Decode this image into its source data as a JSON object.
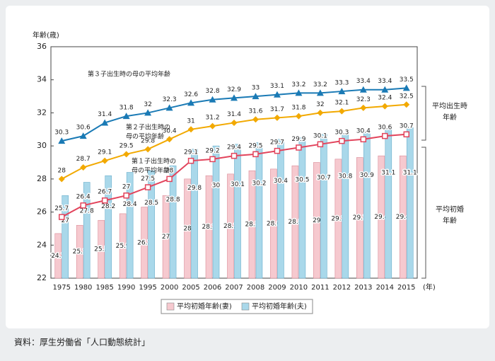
{
  "chart_data": {
    "type": "combo",
    "y_label": "年齢(歳)",
    "x_unit": "(年)",
    "categories": [
      "1975",
      "1980",
      "1985",
      "1990",
      "1995",
      "2000",
      "2005",
      "2006",
      "2007",
      "2008",
      "2009",
      "2010",
      "2011",
      "2012",
      "2013",
      "2014",
      "2015"
    ],
    "ylim": [
      22,
      36
    ],
    "yticks": [
      22,
      24,
      26,
      28,
      30,
      32,
      34,
      36
    ],
    "grid": false,
    "series": [
      {
        "name": "平均初婚年齢(妻)",
        "kind": "bar",
        "color": "#f6c9cf",
        "values": [
          24.7,
          25.2,
          25.5,
          25.9,
          26.3,
          27.0,
          28.0,
          28.2,
          28.3,
          28.5,
          28.6,
          28.8,
          29.0,
          29.2,
          29.3,
          29.4,
          29.4
        ]
      },
      {
        "name": "平均初婚年齢(夫)",
        "kind": "bar",
        "color": "#a9d8ea",
        "values": [
          27.0,
          27.8,
          28.2,
          28.4,
          28.5,
          28.8,
          29.8,
          30.0,
          30.1,
          30.2,
          30.4,
          30.5,
          30.7,
          30.8,
          30.9,
          31.1,
          31.1
        ]
      },
      {
        "label_lines": [
          "第１子出生時の",
          "母の平均年齢"
        ],
        "kind": "line",
        "marker": "square",
        "color": "#e2445c",
        "values": [
          25.7,
          26.4,
          26.7,
          27.0,
          27.5,
          28.0,
          29.1,
          29.2,
          29.4,
          29.5,
          29.7,
          29.9,
          30.1,
          30.3,
          30.4,
          30.6,
          30.7
        ]
      },
      {
        "label_lines": [
          "第２子出生時の",
          "母の平均年齢"
        ],
        "kind": "line",
        "marker": "diamond",
        "color": "#f2a900",
        "values": [
          28.0,
          28.7,
          29.1,
          29.5,
          29.8,
          30.4,
          31.0,
          31.2,
          31.4,
          31.6,
          31.7,
          31.8,
          32.0,
          32.1,
          32.3,
          32.4,
          32.5
        ]
      },
      {
        "label_lines": [
          "第３子出生時の母の平均年齢"
        ],
        "kind": "line",
        "marker": "triangle",
        "color": "#1a7ab5",
        "values": [
          30.3,
          30.6,
          31.4,
          31.8,
          32.0,
          32.3,
          32.6,
          32.8,
          32.9,
          33.0,
          33.1,
          33.2,
          33.2,
          33.3,
          33.4,
          33.4,
          33.5
        ]
      }
    ],
    "brackets": [
      {
        "lines": [
          "平均出生時",
          "年齢"
        ]
      },
      {
        "lines": [
          "平均初婚",
          "年齢"
        ]
      }
    ],
    "source": "資料：厚生労働省「人口動態統計」"
  }
}
